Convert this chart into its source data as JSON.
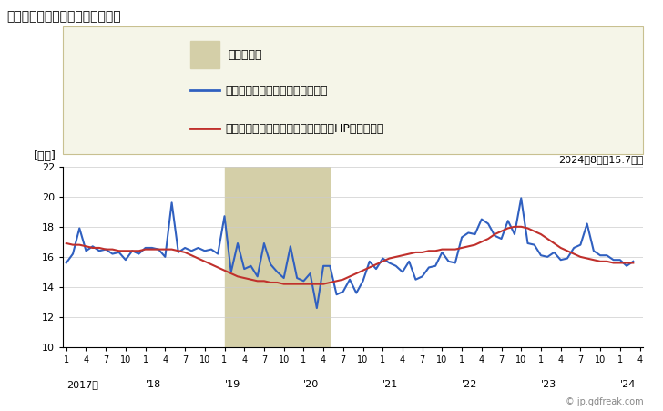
{
  "title": "男性常用労働者の所定外労働時間",
  "ylabel": "[時間]",
  "annotation": "2024年8月：15.7時間",
  "legend_recession": "景気後退期",
  "legend_line1": "男性常用労働者の所定外労働時間",
  "legend_line2": "男性常用労働者の所定外労働時間（HPフィルタ）",
  "ylim": [
    10,
    22
  ],
  "yticks": [
    10,
    12,
    14,
    16,
    18,
    20,
    22
  ],
  "recession_start": 24,
  "recession_end": 40,
  "background_color": "#ffffff",
  "legend_box_facecolor": "#f5f5e8",
  "legend_box_edgecolor": "#c8c090",
  "recession_color": "#d4cfa8",
  "line1_color": "#3060c0",
  "line2_color": "#c0302c",
  "blue_data": [
    15.6,
    16.2,
    17.9,
    16.4,
    16.7,
    16.4,
    16.5,
    16.2,
    16.3,
    15.8,
    16.4,
    16.2,
    16.6,
    16.6,
    16.5,
    16.0,
    19.6,
    16.3,
    16.6,
    16.4,
    16.6,
    16.4,
    16.5,
    16.2,
    18.7,
    15.0,
    16.9,
    15.2,
    15.4,
    14.7,
    16.9,
    15.5,
    15.0,
    14.6,
    16.7,
    14.6,
    14.4,
    14.9,
    12.6,
    15.4,
    15.4,
    13.5,
    13.7,
    14.5,
    13.6,
    14.4,
    15.7,
    15.2,
    15.9,
    15.6,
    15.4,
    15.0,
    15.7,
    14.5,
    14.7,
    15.3,
    15.4,
    16.3,
    15.7,
    15.6,
    17.3,
    17.6,
    17.5,
    18.5,
    18.2,
    17.4,
    17.2,
    18.4,
    17.5,
    19.9,
    16.9,
    16.8,
    16.1,
    16.0,
    16.3,
    15.8,
    15.9,
    16.6,
    16.8,
    18.2,
    16.4,
    16.1,
    16.1,
    15.8,
    15.8,
    15.4,
    15.7
  ],
  "red_data": [
    16.9,
    16.8,
    16.8,
    16.7,
    16.6,
    16.6,
    16.5,
    16.5,
    16.4,
    16.4,
    16.4,
    16.4,
    16.5,
    16.5,
    16.5,
    16.5,
    16.5,
    16.4,
    16.3,
    16.1,
    15.9,
    15.7,
    15.5,
    15.3,
    15.1,
    14.9,
    14.7,
    14.6,
    14.5,
    14.4,
    14.4,
    14.3,
    14.3,
    14.2,
    14.2,
    14.2,
    14.2,
    14.2,
    14.2,
    14.2,
    14.3,
    14.4,
    14.5,
    14.7,
    14.9,
    15.1,
    15.3,
    15.5,
    15.7,
    15.9,
    16.0,
    16.1,
    16.2,
    16.3,
    16.3,
    16.4,
    16.4,
    16.5,
    16.5,
    16.5,
    16.6,
    16.7,
    16.8,
    17.0,
    17.2,
    17.5,
    17.7,
    17.9,
    18.0,
    18.0,
    17.9,
    17.7,
    17.5,
    17.2,
    16.9,
    16.6,
    16.4,
    16.2,
    16.0,
    15.9,
    15.8,
    15.7,
    15.7,
    15.6,
    15.6,
    15.6,
    15.6
  ],
  "x_year_labels": [
    "2017年",
    "'18",
    "'19",
    "'20",
    "'21",
    "'22",
    "'23",
    "'24"
  ],
  "x_year_positions": [
    0,
    12,
    24,
    36,
    48,
    60,
    72,
    84
  ],
  "x_month_ticks": [
    0,
    3,
    6,
    9,
    12,
    15,
    18,
    21,
    24,
    27,
    30,
    33,
    36,
    39,
    42,
    45,
    48,
    51,
    54,
    57,
    60,
    63,
    66,
    69,
    72,
    75,
    78,
    81,
    84,
    87
  ],
  "x_month_labels": [
    "1",
    "4",
    "7",
    "10",
    "1",
    "4",
    "7",
    "10",
    "1",
    "4",
    "7",
    "10",
    "1",
    "4",
    "7",
    "10",
    "1",
    "4",
    "7",
    "10",
    "1",
    "4",
    "7",
    "10",
    "1",
    "4",
    "7",
    "10",
    "1",
    "4"
  ],
  "watermark": "© jp.gdfreak.com",
  "n_points": 87
}
